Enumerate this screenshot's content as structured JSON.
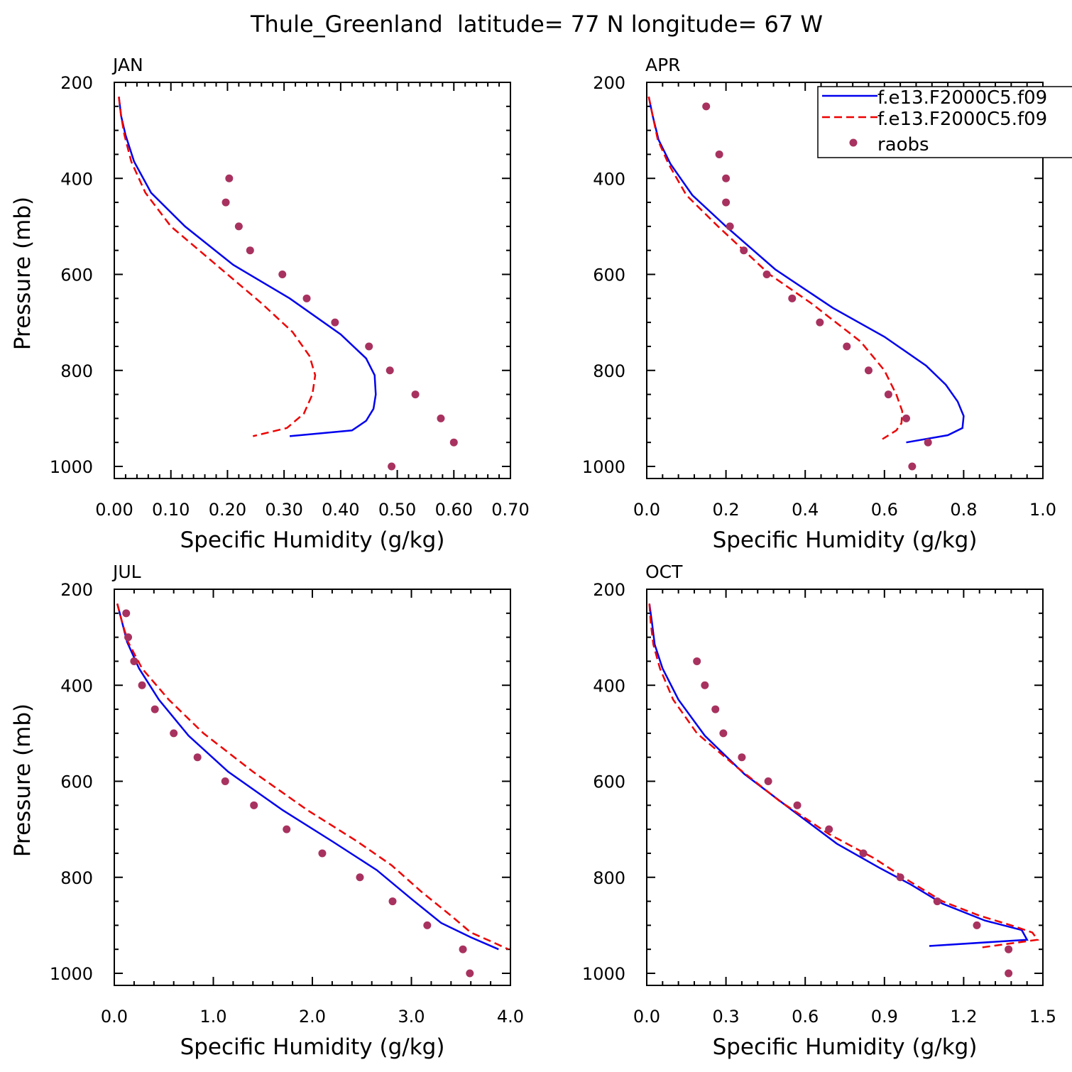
{
  "figure_title": "Thule_Greenland  latitude= 77 N longitude= 67 W",
  "legend": {
    "entries": [
      {
        "label": "f.e13.F2000C5.f09",
        "style": "solid",
        "color": "#0000ee"
      },
      {
        "label": "f.e13.F2000C5.f09",
        "style": "dashed",
        "color": "#ee0000"
      },
      {
        "label": "raobs",
        "style": "dot",
        "color": "#a8325f"
      }
    ]
  },
  "colors": {
    "series_1": "#0000ee",
    "series_2": "#ee0000",
    "obs": "#a8325f"
  },
  "chart_data": [
    {
      "type": "line",
      "panel": "JAN",
      "xlabel": "Specific Humidity (g/kg)",
      "ylabel": "Pressure (mb)",
      "xlim": [
        0,
        0.7
      ],
      "ylim": [
        200,
        1000
      ],
      "xticks": [
        "0.00",
        "0.10",
        "0.20",
        "0.30",
        "0.40",
        "0.50",
        "0.60",
        "0.70"
      ],
      "yticks": [
        "200",
        "400",
        "600",
        "800",
        "1000"
      ],
      "series": [
        {
          "name": "f.e13.F2000C5.f09 (solid)",
          "points": [
            [
              0.008,
              230
            ],
            [
              0.012,
              270
            ],
            [
              0.02,
              310
            ],
            [
              0.035,
              365
            ],
            [
              0.065,
              430
            ],
            [
              0.125,
              500
            ],
            [
              0.21,
              580
            ],
            [
              0.31,
              650
            ],
            [
              0.4,
              725
            ],
            [
              0.445,
              775
            ],
            [
              0.46,
              810
            ],
            [
              0.462,
              850
            ],
            [
              0.458,
              880
            ],
            [
              0.445,
              905
            ],
            [
              0.42,
              925
            ],
            [
              0.31,
              937
            ]
          ]
        },
        {
          "name": "f.e13.F2000C5.f09 (dashed)",
          "points": [
            [
              0.008,
              230
            ],
            [
              0.012,
              270
            ],
            [
              0.018,
              310
            ],
            [
              0.03,
              365
            ],
            [
              0.055,
              430
            ],
            [
              0.1,
              500
            ],
            [
              0.18,
              580
            ],
            [
              0.26,
              660
            ],
            [
              0.315,
              720
            ],
            [
              0.345,
              770
            ],
            [
              0.355,
              810
            ],
            [
              0.35,
              850
            ],
            [
              0.335,
              890
            ],
            [
              0.305,
              920
            ],
            [
              0.245,
              937
            ]
          ]
        },
        {
          "name": "raobs",
          "points": [
            [
              0.203,
              400
            ],
            [
              0.197,
              450
            ],
            [
              0.22,
              500
            ],
            [
              0.24,
              550
            ],
            [
              0.297,
              600
            ],
            [
              0.34,
              650
            ],
            [
              0.39,
              700
            ],
            [
              0.45,
              750
            ],
            [
              0.487,
              800
            ],
            [
              0.532,
              850
            ],
            [
              0.577,
              900
            ],
            [
              0.6,
              950
            ],
            [
              0.49,
              1000
            ]
          ]
        }
      ]
    },
    {
      "type": "line",
      "panel": "APR",
      "xlabel": "Specific Humidity (g/kg)",
      "ylabel": "",
      "xlim": [
        0,
        1.0
      ],
      "ylim": [
        200,
        1000
      ],
      "xticks": [
        "0.0",
        "0.2",
        "0.4",
        "0.6",
        "0.8",
        "1.0"
      ],
      "yticks": [
        "200",
        "400",
        "600",
        "800",
        "1000"
      ],
      "series": [
        {
          "name": "f.e13.F2000C5.f09 (solid)",
          "points": [
            [
              0.005,
              230
            ],
            [
              0.015,
              270
            ],
            [
              0.03,
              320
            ],
            [
              0.06,
              370
            ],
            [
              0.115,
              435
            ],
            [
              0.2,
              500
            ],
            [
              0.325,
              590
            ],
            [
              0.47,
              670
            ],
            [
              0.6,
              730
            ],
            [
              0.705,
              790
            ],
            [
              0.755,
              830
            ],
            [
              0.785,
              865
            ],
            [
              0.8,
              895
            ],
            [
              0.797,
              920
            ],
            [
              0.76,
              935
            ],
            [
              0.655,
              950
            ]
          ]
        },
        {
          "name": "f.e13.F2000C5.f09 (dashed)",
          "points": [
            [
              0.005,
              230
            ],
            [
              0.015,
              270
            ],
            [
              0.028,
              320
            ],
            [
              0.055,
              370
            ],
            [
              0.1,
              435
            ],
            [
              0.18,
              500
            ],
            [
              0.31,
              600
            ],
            [
              0.415,
              660
            ],
            [
              0.54,
              740
            ],
            [
              0.6,
              800
            ],
            [
              0.63,
              850
            ],
            [
              0.645,
              885
            ],
            [
              0.643,
              910
            ],
            [
              0.63,
              925
            ],
            [
              0.595,
              943
            ]
          ]
        },
        {
          "name": "raobs",
          "points": [
            [
              0.15,
              250
            ],
            [
              0.183,
              350
            ],
            [
              0.2,
              400
            ],
            [
              0.2,
              450
            ],
            [
              0.21,
              500
            ],
            [
              0.245,
              550
            ],
            [
              0.303,
              600
            ],
            [
              0.367,
              650
            ],
            [
              0.437,
              700
            ],
            [
              0.505,
              750
            ],
            [
              0.56,
              800
            ],
            [
              0.61,
              850
            ],
            [
              0.655,
              900
            ],
            [
              0.71,
              950
            ],
            [
              0.67,
              1000
            ]
          ]
        }
      ]
    },
    {
      "type": "line",
      "panel": "JUL",
      "xlabel": "Specific Humidity (g/kg)",
      "ylabel": "Pressure (mb)",
      "xlim": [
        0,
        4.0
      ],
      "ylim": [
        200,
        1000
      ],
      "xticks": [
        "0.0",
        "1.0",
        "2.0",
        "3.0",
        "4.0"
      ],
      "yticks": [
        "200",
        "400",
        "600",
        "800",
        "1000"
      ],
      "series": [
        {
          "name": "f.e13.F2000C5.f09 (solid)",
          "points": [
            [
              0.03,
              230
            ],
            [
              0.08,
              270
            ],
            [
              0.13,
              310
            ],
            [
              0.25,
              365
            ],
            [
              0.45,
              430
            ],
            [
              0.75,
              505
            ],
            [
              1.15,
              580
            ],
            [
              1.7,
              660
            ],
            [
              2.2,
              725
            ],
            [
              2.65,
              785
            ],
            [
              3.0,
              845
            ],
            [
              3.3,
              895
            ],
            [
              3.6,
              925
            ],
            [
              3.88,
              950
            ]
          ]
        },
        {
          "name": "f.e13.F2000C5.f09 (dashed)",
          "points": [
            [
              0.03,
              230
            ],
            [
              0.08,
              270
            ],
            [
              0.14,
              310
            ],
            [
              0.28,
              365
            ],
            [
              0.55,
              430
            ],
            [
              0.9,
              500
            ],
            [
              1.4,
              580
            ],
            [
              1.95,
              660
            ],
            [
              2.45,
              725
            ],
            [
              2.8,
              775
            ],
            [
              3.1,
              830
            ],
            [
              3.4,
              880
            ],
            [
              3.6,
              915
            ],
            [
              3.82,
              935
            ],
            [
              3.98,
              950
            ]
          ]
        },
        {
          "name": "raobs",
          "points": [
            [
              0.12,
              250
            ],
            [
              0.14,
              300
            ],
            [
              0.2,
              350
            ],
            [
              0.28,
              400
            ],
            [
              0.41,
              450
            ],
            [
              0.6,
              500
            ],
            [
              0.84,
              550
            ],
            [
              1.12,
              600
            ],
            [
              1.41,
              650
            ],
            [
              1.74,
              700
            ],
            [
              2.1,
              750
            ],
            [
              2.48,
              800
            ],
            [
              2.81,
              850
            ],
            [
              3.16,
              900
            ],
            [
              3.52,
              950
            ],
            [
              3.59,
              1000
            ]
          ]
        }
      ]
    },
    {
      "type": "line",
      "panel": "OCT",
      "xlabel": "Specific Humidity (g/kg)",
      "ylabel": "",
      "xlim": [
        0,
        1.5
      ],
      "ylim": [
        200,
        1000
      ],
      "xticks": [
        "0.0",
        "0.3",
        "0.6",
        "0.9",
        "1.2",
        "1.5"
      ],
      "yticks": [
        "200",
        "400",
        "600",
        "800",
        "1000"
      ],
      "series": [
        {
          "name": "f.e13.F2000C5.f09 (solid)",
          "points": [
            [
              0.01,
              230
            ],
            [
              0.02,
              270
            ],
            [
              0.03,
              315
            ],
            [
              0.06,
              365
            ],
            [
              0.12,
              430
            ],
            [
              0.22,
              505
            ],
            [
              0.37,
              585
            ],
            [
              0.55,
              660
            ],
            [
              0.72,
              730
            ],
            [
              0.88,
              780
            ],
            [
              1.0,
              815
            ],
            [
              1.12,
              855
            ],
            [
              1.28,
              890
            ],
            [
              1.42,
              910
            ],
            [
              1.44,
              930
            ],
            [
              1.07,
              943
            ]
          ]
        },
        {
          "name": "f.e13.F2000C5.f09 (dashed)",
          "points": [
            [
              0.01,
              230
            ],
            [
              0.015,
              270
            ],
            [
              0.025,
              315
            ],
            [
              0.05,
              365
            ],
            [
              0.1,
              430
            ],
            [
              0.19,
              500
            ],
            [
              0.34,
              570
            ],
            [
              0.5,
              640
            ],
            [
              0.69,
              710
            ],
            [
              0.86,
              760
            ],
            [
              1.0,
              810
            ],
            [
              1.12,
              850
            ],
            [
              1.26,
              880
            ],
            [
              1.38,
              900
            ],
            [
              1.46,
              915
            ],
            [
              1.48,
              930
            ],
            [
              1.27,
              946
            ]
          ]
        },
        {
          "name": "raobs",
          "points": [
            [
              0.19,
              350
            ],
            [
              0.22,
              400
            ],
            [
              0.26,
              450
            ],
            [
              0.29,
              500
            ],
            [
              0.36,
              550
            ],
            [
              0.46,
              600
            ],
            [
              0.57,
              650
            ],
            [
              0.69,
              700
            ],
            [
              0.82,
              750
            ],
            [
              0.96,
              800
            ],
            [
              1.1,
              850
            ],
            [
              1.25,
              900
            ],
            [
              1.37,
              950
            ],
            [
              1.37,
              1000
            ]
          ]
        }
      ]
    }
  ]
}
